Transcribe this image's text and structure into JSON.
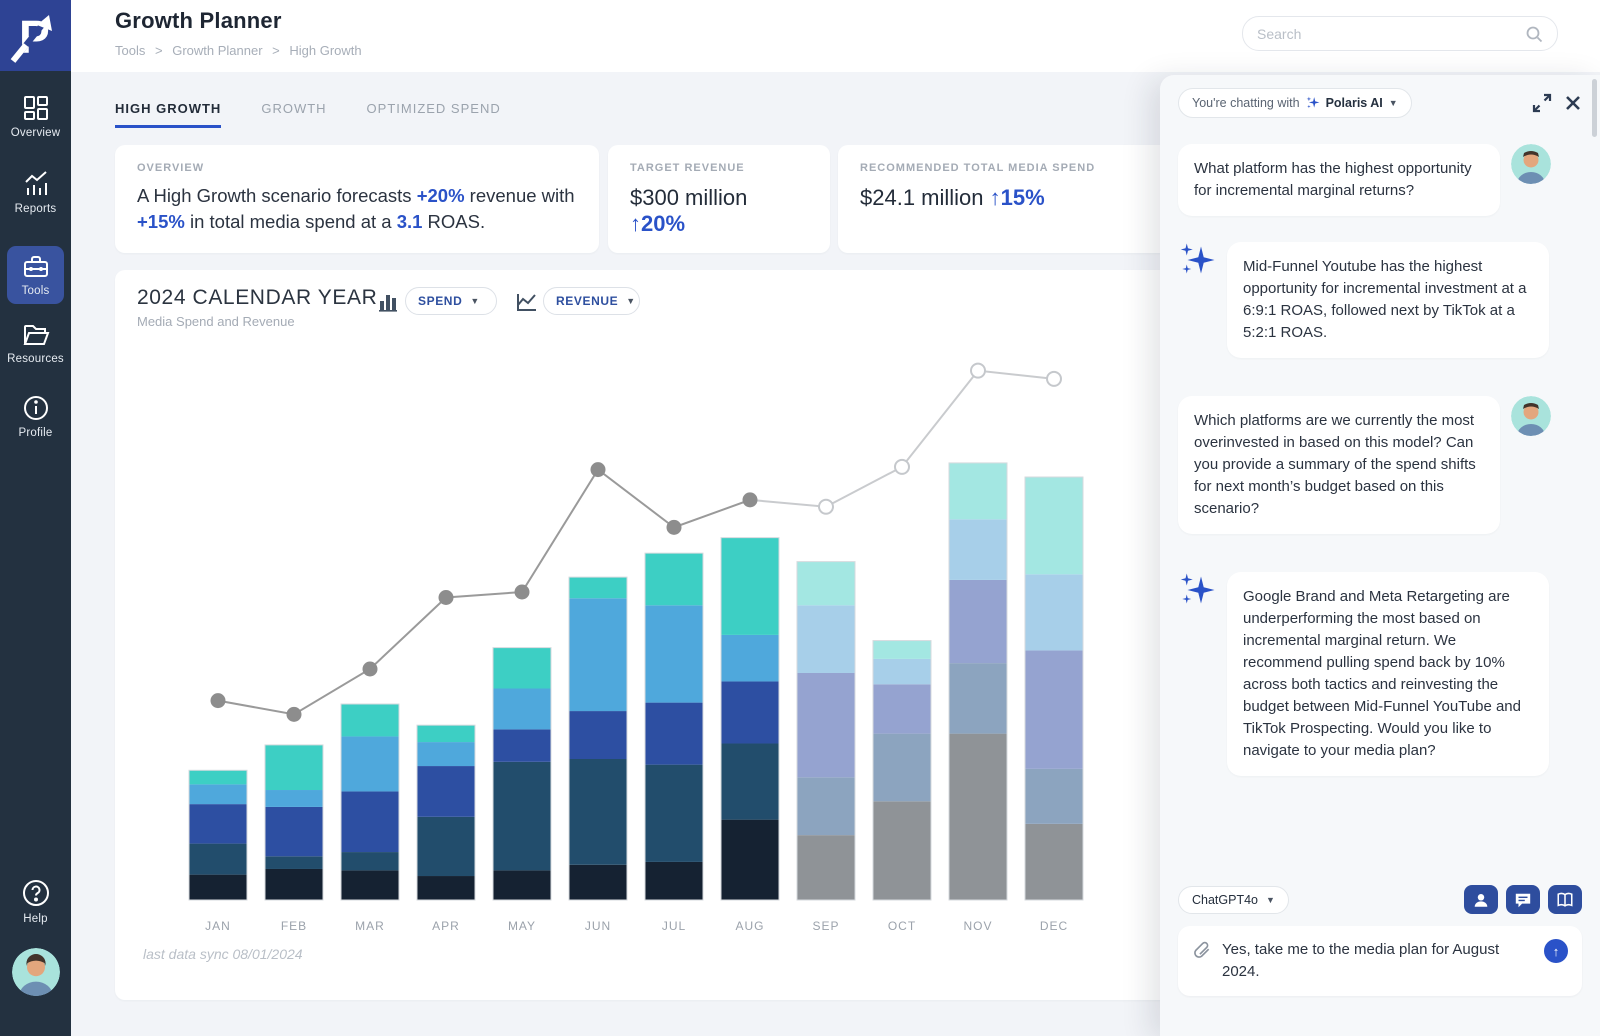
{
  "colors": {
    "accent_blue": "#2a52c8",
    "sidebar_bg": "#233140",
    "logo_bg": "#2e4394",
    "active_nav_tile": "#39539f",
    "chat_button_blue": "#2e4d9e"
  },
  "sidebar": {
    "items": [
      {
        "label": "Overview",
        "icon": "grid-icon"
      },
      {
        "label": "Reports",
        "icon": "report-chart-icon"
      },
      {
        "label": "Tools",
        "icon": "toolbox-icon",
        "active": true
      },
      {
        "label": "Resources",
        "icon": "folder-icon"
      },
      {
        "label": "Profile",
        "icon": "info-circle-icon"
      }
    ],
    "help_label": "Help"
  },
  "header": {
    "title": "Growth Planner",
    "breadcrumb": [
      "Tools",
      "Growth Planner",
      "High Growth"
    ],
    "breadcrumb_separator": ">",
    "search_placeholder": "Search"
  },
  "tabs": [
    {
      "label": "HIGH GROWTH",
      "active": true
    },
    {
      "label": "GROWTH",
      "active": false
    },
    {
      "label": "OPTIMIZED SPEND",
      "active": false
    }
  ],
  "cards": {
    "overview": {
      "label": "OVERVIEW",
      "parts": [
        {
          "text": "A High Growth scenario forecasts "
        },
        {
          "text": "+20%",
          "accent": true
        },
        {
          "text": " revenue with "
        },
        {
          "text": "+15%",
          "accent": true
        },
        {
          "text": " in total media spend at a "
        },
        {
          "text": "3.1",
          "accent": true
        },
        {
          "text": " ROAS."
        }
      ]
    },
    "target_revenue": {
      "label": "TARGET REVENUE",
      "value": "$300 million",
      "delta": "↑20%"
    },
    "media_spend": {
      "label": "RECOMMENDED TOTAL MEDIA SPEND",
      "value": "$24.1 million",
      "delta": "↑15%"
    }
  },
  "chart": {
    "title": "2024 CALENDAR YEAR",
    "subtitle": "Media Spend and Revenue",
    "spend_selector": "SPEND",
    "revenue_selector": "REVENUE",
    "footnote": "last data sync 08/01/2024"
  },
  "chart_data": {
    "type": "bar",
    "subtype": "stacked bars (media spend) with revenue line overlay",
    "title": "2024 CALENDAR YEAR",
    "subtitle": "Media Spend and Revenue",
    "categories": [
      "JAN",
      "FEB",
      "MAR",
      "APR",
      "MAY",
      "JUN",
      "JUL",
      "AUG",
      "SEP",
      "OCT",
      "NOV",
      "DEC"
    ],
    "grid": false,
    "legend": "none",
    "axes_labeled": false,
    "units_note": "no axis labels shown; values estimated from bar/line heights",
    "spend_unit": "$M (estimated, totals ~ $24.1M year)",
    "revenue_unit": "$M (estimated)",
    "ylim_spend": [
      0,
      3.5
    ],
    "ylim_revenue": [
      0,
      40
    ],
    "stack_order_bottom_to_top": [
      "segment-1-darkest",
      "segment-2",
      "segment-3",
      "segment-4",
      "segment-5-top"
    ],
    "palette_actual": [
      "#152232",
      "#224d6c",
      "#2d4fa2",
      "#4fa8dc",
      "#3dcfc4"
    ],
    "palette_forecast": [
      "#8f9397",
      "#8ca4bf",
      "#95a3d0",
      "#a7cfe9",
      "#a3e7e2"
    ],
    "line_color_actual": "#9a9a9a",
    "line_color_forecast": "#c9cbce",
    "bars": [
      {
        "month": "JAN",
        "forecast": false,
        "segments": [
          0.18,
          0.22,
          0.28,
          0.14,
          0.1
        ],
        "total": 0.92
      },
      {
        "month": "FEB",
        "forecast": false,
        "segments": [
          0.22,
          0.09,
          0.35,
          0.12,
          0.32
        ],
        "total": 1.1
      },
      {
        "month": "MAR",
        "forecast": false,
        "segments": [
          0.21,
          0.13,
          0.43,
          0.39,
          0.23
        ],
        "total": 1.39
      },
      {
        "month": "APR",
        "forecast": false,
        "segments": [
          0.17,
          0.42,
          0.36,
          0.17,
          0.12
        ],
        "total": 1.24
      },
      {
        "month": "MAY",
        "forecast": false,
        "segments": [
          0.21,
          0.77,
          0.23,
          0.29,
          0.29
        ],
        "total": 1.79
      },
      {
        "month": "JUN",
        "forecast": false,
        "segments": [
          0.25,
          0.75,
          0.34,
          0.8,
          0.15
        ],
        "total": 2.29
      },
      {
        "month": "JUL",
        "forecast": false,
        "segments": [
          0.27,
          0.69,
          0.44,
          0.69,
          0.37
        ],
        "total": 2.46
      },
      {
        "month": "AUG",
        "forecast": false,
        "segments": [
          0.57,
          0.54,
          0.44,
          0.33,
          0.69
        ],
        "total": 2.57
      },
      {
        "month": "SEP",
        "forecast": true,
        "segments": [
          0.46,
          0.41,
          0.74,
          0.48,
          0.31
        ],
        "total": 2.4
      },
      {
        "month": "OCT",
        "forecast": true,
        "segments": [
          0.7,
          0.48,
          0.35,
          0.18,
          0.13
        ],
        "total": 1.84
      },
      {
        "month": "NOV",
        "forecast": true,
        "segments": [
          1.18,
          0.5,
          0.59,
          0.43,
          0.4
        ],
        "total": 3.1
      },
      {
        "month": "DEC",
        "forecast": true,
        "segments": [
          0.54,
          0.39,
          0.84,
          0.54,
          0.69
        ],
        "total": 3.0
      }
    ],
    "line": {
      "name": "Revenue",
      "values": [
        14.5,
        13.5,
        16.8,
        22.0,
        22.4,
        31.3,
        27.1,
        29.1,
        28.6,
        31.5,
        38.5,
        37.9
      ],
      "marker_style_actual": "filled gray dot (JAN-AUG)",
      "marker_style_forecast": "open circle (SEP-DEC)"
    }
  },
  "chat": {
    "header_prefix": "You're chatting with",
    "assistant_name": "Polaris AI",
    "messages": [
      {
        "role": "user",
        "text": "What platform has the highest opportunity for incremental marginal returns?"
      },
      {
        "role": "ai",
        "text": "Mid-Funnel Youtube has the highest opportunity for incremental investment at a 6:9:1 ROAS, followed next by TikTok at a 5:2:1 ROAS."
      },
      {
        "role": "user",
        "text": "Which platforms are we currently the most overinvested in based on this model? Can you provide a summary of the spend shifts for next month’s budget based on this scenario?"
      },
      {
        "role": "ai",
        "text": "Google Brand and Meta Retargeting are underperforming the most based on incremental marginal return. We recommend pulling spend back by 10% across both tactics and reinvesting the budget between Mid-Funnel YouTube and TikTok Prospecting. Would you like to navigate to your media plan?"
      }
    ],
    "model": "ChatGPT4o",
    "input_value": "Yes, take me to the media plan for August 2024."
  }
}
